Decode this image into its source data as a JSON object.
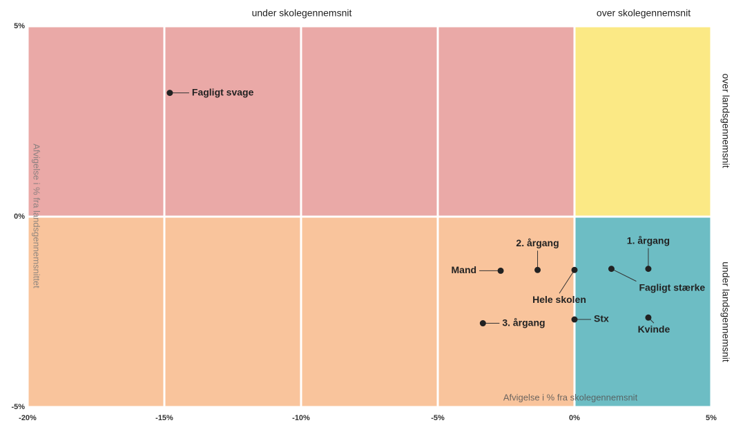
{
  "chart_data": {
    "type": "scatter",
    "x_label": "Afvigelse i % fra skolegennemsnit",
    "y_label": "Afvigelse i % fra landsgennemsnittet",
    "quadrant_labels": {
      "top_left": "under skolegennemsnit",
      "top_right": "over skolegennemsnit",
      "right_top": "over landsgennemsnit",
      "right_bottom": "under landsgennemsnit"
    },
    "quadrant_colors": {
      "top_left": "#eaa9a7",
      "top_right": "#fbe985",
      "bottom_left": "#f9c49c",
      "bottom_right": "#6dbdc4"
    },
    "labels": [
      "Fagligt svage",
      "Mand",
      "2. årgang",
      "Hele skolen",
      "Fagligt stærke",
      "1. årgang",
      "Kvinde",
      "Stx",
      "3. årgang"
    ],
    "x": [
      -14.8,
      -2.7,
      -1.35,
      0,
      1.35,
      2.7,
      2.7,
      0,
      -3.35
    ],
    "y": [
      3.25,
      -1.42,
      -1.4,
      -1.4,
      -1.37,
      -1.37,
      -2.65,
      -2.7,
      -2.8
    ],
    "color": "#222222",
    "xlim": [
      -20,
      5
    ],
    "ylim": [
      -5,
      5
    ],
    "xticks": [
      {
        "value": -20,
        "label": "-20%"
      },
      {
        "value": -15,
        "label": "-15%"
      },
      {
        "value": -10,
        "label": "-10%"
      },
      {
        "value": -5,
        "label": "-5%"
      },
      {
        "value": 0,
        "label": "0%"
      },
      {
        "value": 5,
        "label": "5%"
      }
    ],
    "yticks": [
      {
        "value": -5,
        "label": "-5%"
      },
      {
        "value": 0,
        "label": "0%"
      },
      {
        "value": 5,
        "label": "5%"
      }
    ],
    "grid": true
  }
}
